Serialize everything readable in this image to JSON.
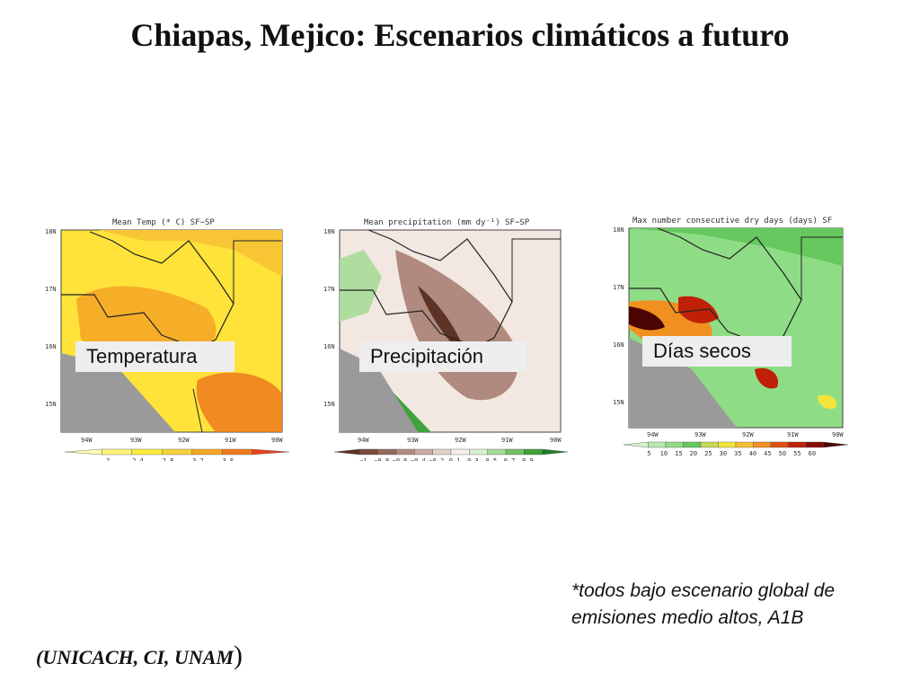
{
  "slide": {
    "title": "Chiapas, Mejico: Escenarios climáticos a futuro",
    "note": "*todos bajo escenario global de emisiones medio altos, A1B",
    "credit": "(UNICACH, CI, UNAM",
    "credit_close": ")"
  },
  "lat_ticks": [
    "18N",
    "17N",
    "16N",
    "15N"
  ],
  "lon_ticks": [
    "94W",
    "93W",
    "92W",
    "91W",
    "90W"
  ],
  "maps": [
    {
      "title": "Mean Temp (* C) SF−SP",
      "label": "Temperatura",
      "colorbar": [
        "2",
        "2.4",
        "2.8",
        "3.2",
        "3.6"
      ],
      "colors": [
        "#ffffb0",
        "#fff57a",
        "#ffec3c",
        "#f8d23a",
        "#f5a623",
        "#ee7a1c",
        "#e8431a"
      ]
    },
    {
      "title": "Mean precipitation (mm dy⁻¹) SF−SP",
      "label": "Precipitación",
      "colorbar": [
        "−1",
        "−0.8",
        "−0.6",
        "−0.4",
        "−0.2",
        "0.1",
        "0.3",
        "0.5",
        "0.7",
        "0.9"
      ],
      "colors": [
        "#5c3324",
        "#7a4a3a",
        "#94685a",
        "#b08a7e",
        "#c9aca3",
        "#e2d0cb",
        "#f6efec",
        "#d8f0d0",
        "#a6dc98",
        "#72c062",
        "#3fa23a",
        "#1e7d22"
      ]
    },
    {
      "title": "Max number consecutive dry days (days) SF",
      "label": "Días secos",
      "colorbar": [
        "5",
        "10",
        "15",
        "20",
        "25",
        "30",
        "35",
        "40",
        "45",
        "50",
        "55",
        "60"
      ],
      "colors": [
        "#d9f5d0",
        "#b6ebac",
        "#8fdc86",
        "#66c85e",
        "#c8d85a",
        "#f3e43a",
        "#f5c030",
        "#f09020",
        "#e05010",
        "#c02008",
        "#8a0a05",
        "#4a0402"
      ]
    }
  ]
}
